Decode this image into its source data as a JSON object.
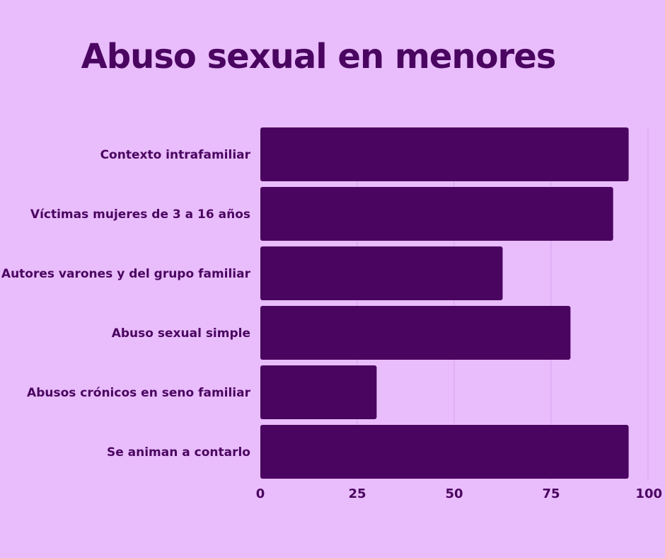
{
  "chart_data": {
    "type": "bar",
    "orientation": "horizontal",
    "title": "Abuso sexual en menores",
    "xlabel": "",
    "ylabel": "",
    "categories": [
      "Contexto intrafamiliar",
      "Víctimas mujeres de 3 a 16 años",
      "Autores varones y del grupo familiar",
      "Abuso sexual simple",
      "Abusos crónicos en seno familiar",
      "Se animan a contarlo"
    ],
    "values": [
      95,
      91,
      62.5,
      80,
      30,
      95
    ],
    "xlim": [
      0,
      100
    ],
    "x_ticks": [
      0,
      25,
      50,
      75,
      100
    ],
    "x_tick_labels": [
      "0",
      "25",
      "50",
      "75",
      "100"
    ],
    "grid": true,
    "legend": "none"
  },
  "colors": {
    "background": "#e9bcfb",
    "bar": "#4a0560",
    "text": "#4a0560",
    "grid": "#d6a3ec"
  }
}
